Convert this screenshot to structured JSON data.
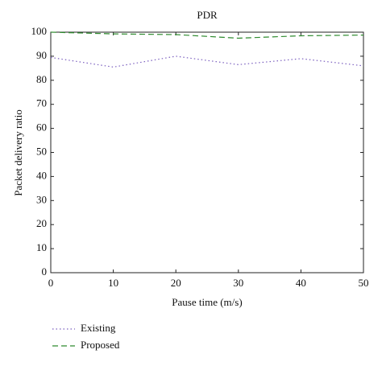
{
  "chart_data": {
    "type": "line",
    "title": "PDR",
    "xlabel": "Pause time (m/s)",
    "ylabel": "Packet delivery ratio",
    "x": [
      0,
      10,
      20,
      30,
      40,
      50
    ],
    "series": [
      {
        "name": "Existing",
        "color": "#7b5fbf",
        "dash": "1.5,3",
        "values": [
          89.5,
          85.5,
          90,
          86.5,
          89,
          86
        ]
      },
      {
        "name": "Proposed",
        "color": "#2e8b2e",
        "dash": "7,4",
        "values": [
          100,
          99.3,
          99,
          97.5,
          98.5,
          98.8
        ]
      }
    ],
    "xlim": [
      0,
      50
    ],
    "xticks": [
      0,
      10,
      20,
      30,
      40,
      50
    ],
    "ylim": [
      0,
      100
    ],
    "yticks": [
      0,
      10,
      20,
      30,
      40,
      50,
      60,
      70,
      80,
      90,
      100
    ]
  }
}
